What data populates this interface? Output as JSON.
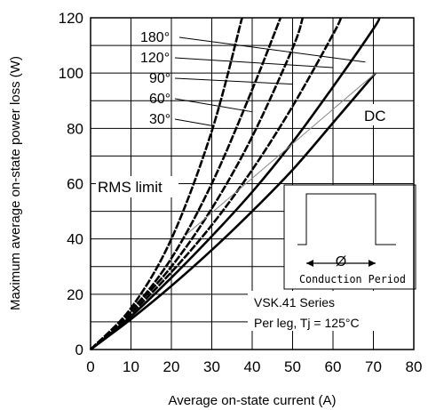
{
  "chart_data": {
    "type": "line",
    "xlabel": "Average on-state current (A)",
    "ylabel": "Maximum average on-state power loss (W)",
    "xlim": [
      0,
      80
    ],
    "ylim": [
      0,
      120
    ],
    "x_ticks": [
      "0",
      "10",
      "20",
      "30",
      "40",
      "50",
      "60",
      "70",
      "80"
    ],
    "y_ticks": [
      "0",
      "20",
      "40",
      "60",
      "80",
      "100",
      "120"
    ],
    "grid": true,
    "series": [
      {
        "name": "180°",
        "style": "dashed",
        "x": [
          0,
          10,
          20,
          30,
          37.5
        ],
        "y": [
          0,
          15,
          40,
          79,
          120
        ]
      },
      {
        "name": "120°",
        "style": "dashed",
        "x": [
          0,
          10,
          20,
          30,
          40,
          47
        ],
        "y": [
          0,
          14,
          33,
          60,
          94,
          120
        ]
      },
      {
        "name": "90°",
        "style": "dashed",
        "x": [
          0,
          10,
          20,
          30,
          40,
          50,
          52.5
        ],
        "y": [
          0,
          14,
          30,
          51,
          77,
          109,
          120
        ]
      },
      {
        "name": "60°",
        "style": "dashed",
        "x": [
          0,
          10,
          20,
          30,
          40,
          50,
          60,
          62
        ],
        "y": [
          0,
          13,
          28,
          45,
          65,
          88,
          114,
          120
        ]
      },
      {
        "name": "30°",
        "style": "solid",
        "x": [
          0,
          10,
          20,
          30,
          40,
          50,
          60,
          70,
          71.5
        ],
        "y": [
          0,
          12,
          26,
          41,
          57,
          75,
          95,
          116,
          120
        ]
      },
      {
        "name": "DC",
        "style": "solid",
        "x": [
          0,
          10,
          20,
          30,
          40,
          50,
          60,
          70.5
        ],
        "y": [
          0,
          11,
          23,
          36,
          50,
          65,
          82,
          100
        ]
      },
      {
        "name": "RMS limit",
        "style": "thin",
        "x": [
          24,
          70.5
        ],
        "y": [
          42,
          100
        ]
      }
    ],
    "curve_labels": [
      "180°",
      "120°",
      "90°",
      "60°",
      "30°"
    ],
    "dc_label": "DC",
    "rms_label": "RMS limit",
    "inset": {
      "caption": "Conduction Period",
      "symbol": "Ø"
    },
    "annotation": [
      "VSK.41 Series",
      "Per leg, Tj = 125°C"
    ]
  }
}
